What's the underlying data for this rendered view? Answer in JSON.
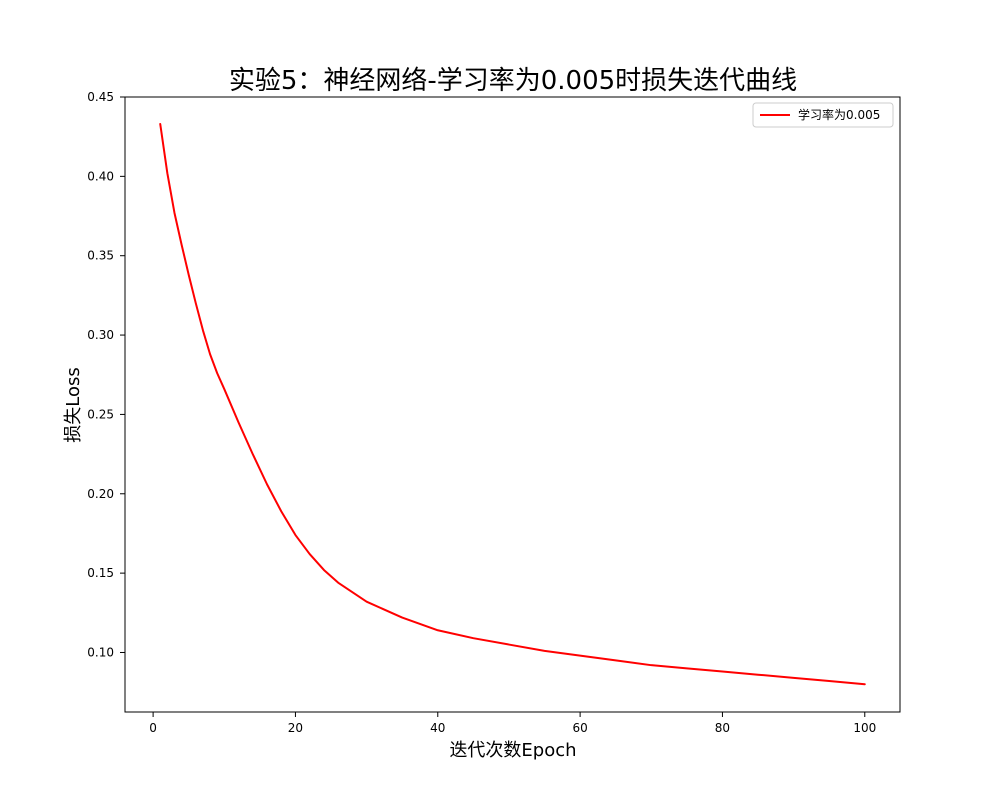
{
  "chart_data": {
    "type": "line",
    "title": "实验5：神经网络-学习率为0.005时损失迭代曲线",
    "xlabel": "迭代次数Epoch",
    "ylabel": "损失Loss",
    "xlim": [
      -3.95,
      104.95
    ],
    "ylim": [
      0.0625,
      0.45
    ],
    "xticks": [
      0,
      20,
      40,
      60,
      80,
      100
    ],
    "yticks": [
      0.1,
      0.15,
      0.2,
      0.25,
      0.3,
      0.35,
      0.4,
      0.45
    ],
    "xtick_labels": [
      "0",
      "20",
      "40",
      "60",
      "80",
      "100"
    ],
    "ytick_labels": [
      "0.10",
      "0.15",
      "0.20",
      "0.25",
      "0.30",
      "0.35",
      "0.40",
      "0.45"
    ],
    "grid": false,
    "legend": {
      "position": "top-right"
    },
    "series": [
      {
        "name": "学习率为0.005",
        "color": "#ff0000",
        "x": [
          1,
          2,
          3,
          4,
          5,
          6,
          7,
          8,
          9,
          10,
          12,
          14,
          16,
          18,
          20,
          22,
          24,
          26,
          28,
          30,
          35,
          40,
          45,
          50,
          55,
          60,
          65,
          70,
          75,
          80,
          85,
          90,
          95,
          100
        ],
        "y": [
          0.433,
          0.402,
          0.377,
          0.357,
          0.338,
          0.32,
          0.303,
          0.288,
          0.276,
          0.266,
          0.245,
          0.225,
          0.206,
          0.189,
          0.174,
          0.162,
          0.152,
          0.144,
          0.138,
          0.132,
          0.122,
          0.114,
          0.109,
          0.105,
          0.101,
          0.098,
          0.095,
          0.092,
          0.09,
          0.088,
          0.086,
          0.084,
          0.082,
          0.08
        ]
      }
    ]
  }
}
